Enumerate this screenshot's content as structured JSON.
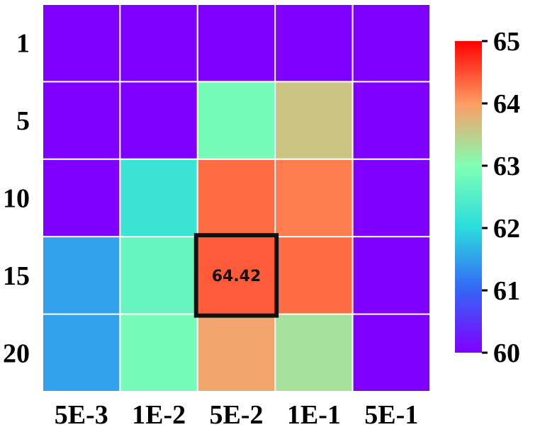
{
  "chart_data": {
    "type": "heatmap",
    "x_categories": [
      "5E-3",
      "1E-2",
      "5E-2",
      "1E-1",
      "5E-1"
    ],
    "y_categories": [
      "1",
      "5",
      "10",
      "15",
      "20"
    ],
    "values": [
      [
        60.0,
        60.0,
        60.0,
        60.0,
        60.0
      ],
      [
        60.0,
        60.0,
        62.9,
        63.6,
        60.0
      ],
      [
        60.0,
        62.2,
        64.3,
        64.2,
        60.0
      ],
      [
        61.5,
        62.7,
        64.42,
        64.3,
        60.0
      ],
      [
        61.5,
        62.9,
        63.9,
        63.3,
        60.0
      ]
    ],
    "colorbar": {
      "min": 60,
      "max": 65,
      "ticks": [
        "60",
        "61",
        "62",
        "63",
        "64",
        "65"
      ],
      "colormap": "rainbow"
    },
    "highlight": {
      "row": 3,
      "col": 2,
      "label": "64.42"
    },
    "colors": {
      "grid_line": "#ffffff",
      "highlight_border": "#111111"
    }
  }
}
